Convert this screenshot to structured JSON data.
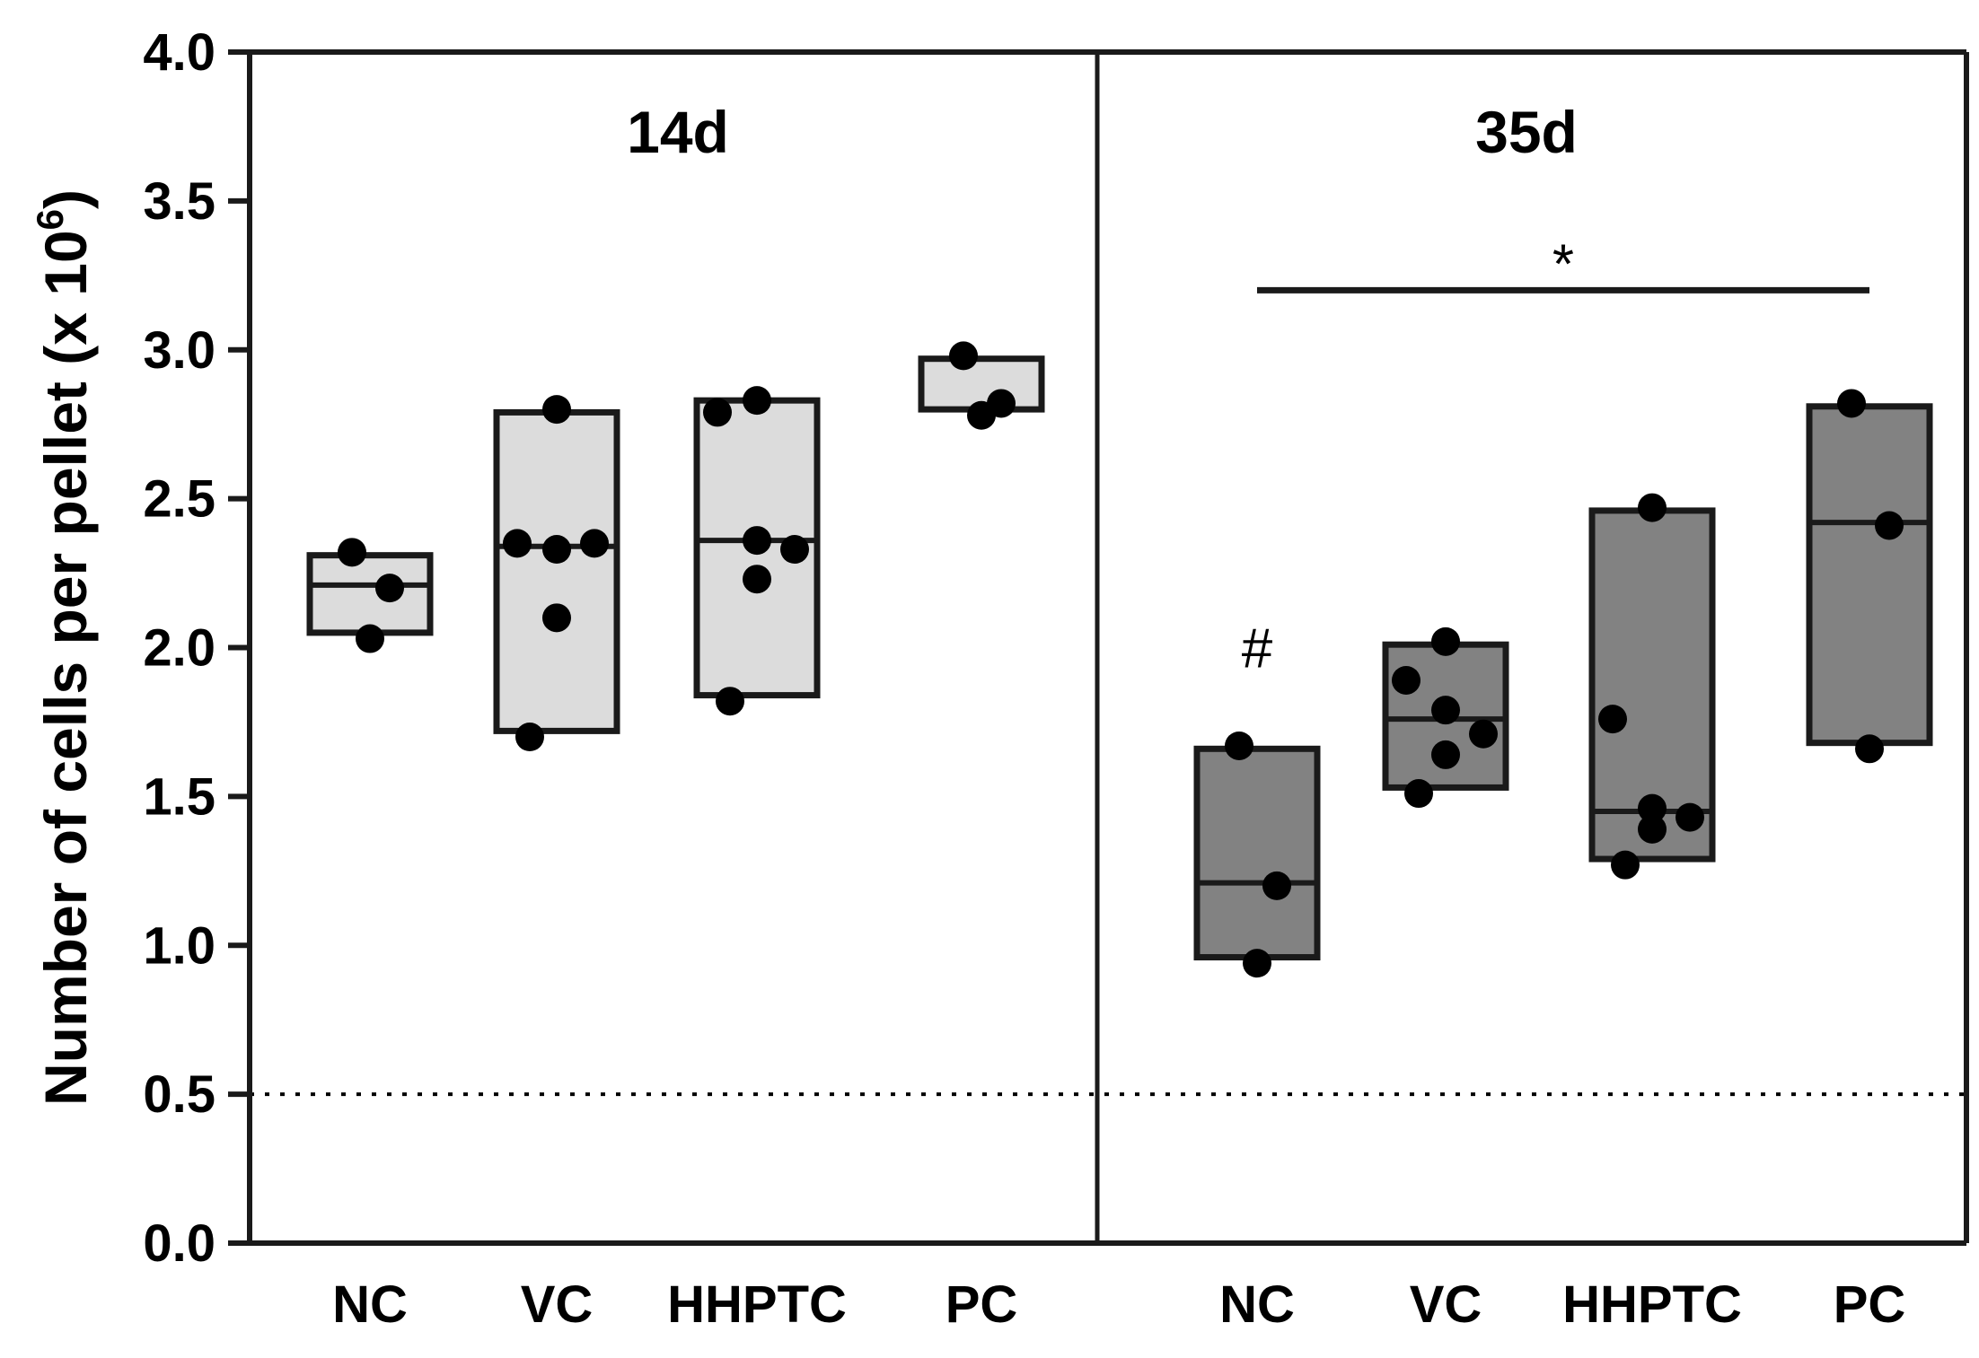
{
  "chart_data": {
    "type": "box",
    "ylabel": "Number of cells per pellet (x 10",
    "ylabel_superscript": "6",
    "ylabel_suffix": ")",
    "ylim": [
      0,
      4
    ],
    "yticks": [
      "0.0",
      "0.5",
      "1.0",
      "1.5",
      "2.0",
      "2.5",
      "3.0",
      "3.5",
      "4.0"
    ],
    "reference_line": 0.5,
    "panels": [
      {
        "label": "14d",
        "fill": "#dcdcdc",
        "groups": [
          {
            "name": "NC",
            "min": 2.05,
            "median": 2.21,
            "max": 2.31,
            "points": [
              2.32,
              2.2,
              2.03
            ]
          },
          {
            "name": "VC",
            "min": 1.72,
            "median": 2.34,
            "max": 2.79,
            "points": [
              2.8,
              2.35,
              2.33,
              2.35,
              2.1,
              1.7
            ]
          },
          {
            "name": "HHPTC",
            "min": 1.84,
            "median": 2.36,
            "max": 2.83,
            "points": [
              2.83,
              2.79,
              2.36,
              2.33,
              2.23,
              1.82
            ]
          },
          {
            "name": "PC",
            "min": 2.8,
            "median": 2.8,
            "max": 2.97,
            "points": [
              2.98,
              2.82,
              2.78
            ]
          }
        ]
      },
      {
        "label": "35d",
        "fill": "#828282",
        "groups": [
          {
            "name": "NC",
            "min": 0.96,
            "median": 1.21,
            "max": 1.66,
            "points": [
              1.67,
              1.2,
              0.94
            ]
          },
          {
            "name": "VC",
            "min": 1.53,
            "median": 1.76,
            "max": 2.01,
            "points": [
              2.02,
              1.89,
              1.79,
              1.71,
              1.64,
              1.51
            ]
          },
          {
            "name": "HHPTC",
            "min": 1.29,
            "median": 1.45,
            "max": 2.46,
            "points": [
              2.47,
              1.76,
              1.46,
              1.43,
              1.39,
              1.27
            ]
          },
          {
            "name": "PC",
            "min": 1.68,
            "median": 2.42,
            "max": 2.81,
            "points": [
              2.82,
              2.41,
              1.66
            ]
          }
        ]
      }
    ],
    "annotations": [
      {
        "text": "#",
        "panel": 1,
        "group": 0,
        "y": 2.0
      },
      {
        "text": "*",
        "panel": 1,
        "bracket_from": 0,
        "bracket_to": 3,
        "y": 3.2
      }
    ]
  }
}
